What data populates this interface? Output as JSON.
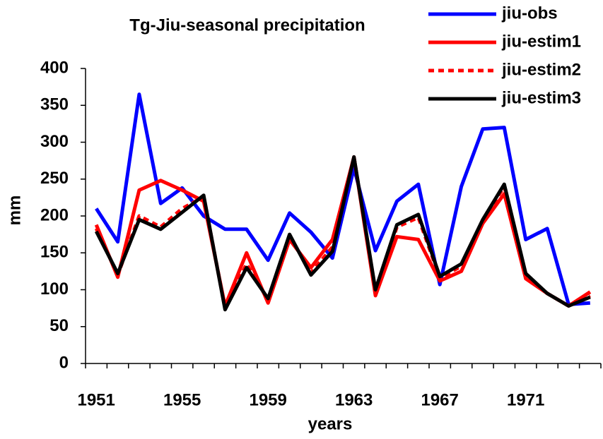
{
  "chart_data": {
    "type": "line",
    "title": "Tg-Jiu-seasonal precipitation",
    "x_label": "years",
    "y_label": "mm",
    "categories": [
      "1951",
      null,
      null,
      null,
      "1955",
      null,
      null,
      null,
      "1959",
      null,
      null,
      null,
      "1963",
      null,
      null,
      null,
      "1967",
      null,
      null,
      null,
      "1971",
      null,
      null,
      null
    ],
    "series": [
      {
        "name": "jiu-obs",
        "color": "#0000ff",
        "dash": false,
        "values": [
          210,
          165,
          365,
          217,
          238,
          200,
          182,
          182,
          140,
          204,
          178,
          143,
          265,
          153,
          220,
          243,
          107,
          240,
          318,
          320,
          168,
          183,
          80,
          82
        ]
      },
      {
        "name": "jiu-estim1",
        "color": "#ff0000",
        "dash": false,
        "values": [
          188,
          117,
          235,
          248,
          235,
          220,
          78,
          150,
          82,
          168,
          130,
          168,
          280,
          92,
          172,
          168,
          112,
          125,
          190,
          230,
          115,
          95,
          78,
          97
        ]
      },
      {
        "name": "jiu-estim2",
        "color": "#ff0000",
        "dash": true,
        "values": [
          183,
          120,
          200,
          185,
          210,
          226,
          75,
          135,
          86,
          173,
          123,
          158,
          280,
          98,
          185,
          198,
          116,
          132,
          194,
          240,
          120,
          95,
          78,
          92
        ]
      },
      {
        "name": "jiu-estim3",
        "color": "#000000",
        "dash": false,
        "values": [
          179,
          122,
          195,
          182,
          205,
          228,
          73,
          130,
          88,
          175,
          120,
          152,
          280,
          100,
          188,
          202,
          118,
          135,
          195,
          243,
          122,
          95,
          78,
          90
        ]
      }
    ],
    "ylim": [
      0,
      400
    ],
    "yticks": [
      0,
      50,
      100,
      150,
      200,
      250,
      300,
      350,
      400
    ],
    "grid": false,
    "legend": "top-right"
  }
}
